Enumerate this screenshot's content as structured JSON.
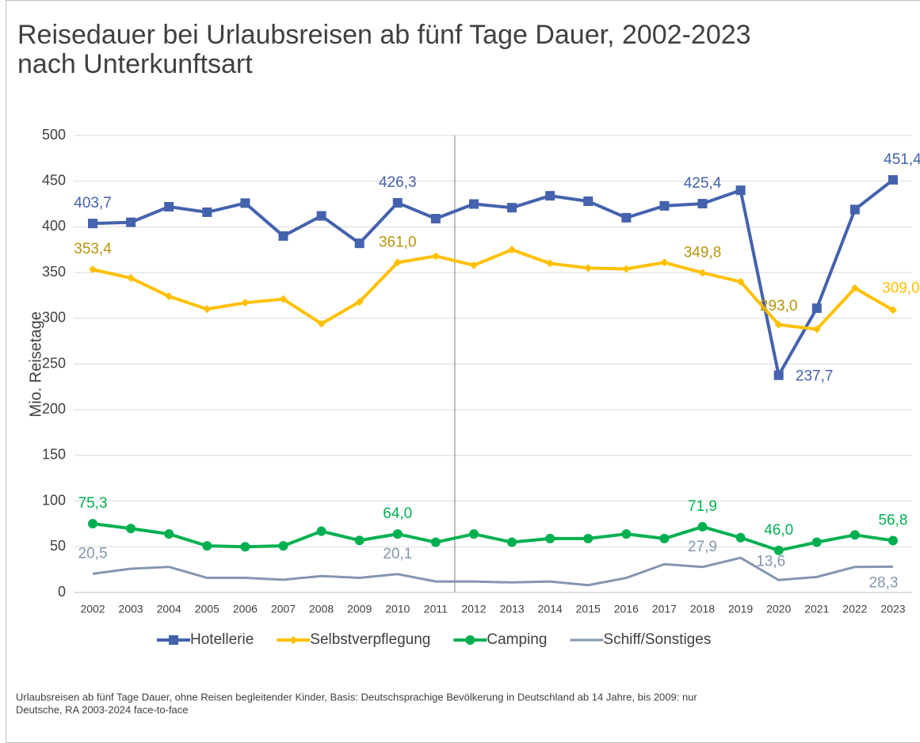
{
  "chart_data": {
    "type": "line",
    "title": "Reisedauer bei Urlaubsreisen ab fünf Tage Dauer, 2002-2023",
    "subtitle": "nach Unterkunftsart",
    "y_label": "Mio. Reisetage",
    "footnote": [
      "Urlaubsreisen ab fünf Tage Dauer, ohne Reisen begleitender Kinder, Basis: Deutschsprachige Bevölkerung in Deutschland ab 14 Jahre, bis 2009: nur",
      "Deutsche, RA 2003-2024 face-to-face"
    ],
    "categories": [
      "2002",
      "2003",
      "2004",
      "2005",
      "2006",
      "2007",
      "2008",
      "2009",
      "2010",
      "2011",
      "2012",
      "2013",
      "2014",
      "2015",
      "2016",
      "2017",
      "2018",
      "2019",
      "2020",
      "2021",
      "2022",
      "2023"
    ],
    "ylim": [
      0,
      500
    ],
    "yticks": [
      0,
      50,
      100,
      150,
      200,
      250,
      300,
      350,
      400,
      450,
      500
    ],
    "grid": true,
    "legend": "bottom",
    "series": [
      {
        "name": "Hotellerie",
        "color": "#4462ad",
        "marker": "square",
        "values": [
          403.7,
          405,
          422,
          416,
          426,
          390,
          412,
          382,
          426.3,
          409,
          425,
          421,
          434,
          428,
          410,
          423,
          425.4,
          440,
          237.7,
          311,
          419,
          451.4
        ],
        "value_labels": [
          "403,7",
          null,
          null,
          null,
          null,
          null,
          null,
          null,
          "426,3",
          null,
          null,
          null,
          null,
          null,
          null,
          null,
          "425,4",
          null,
          "237,7",
          null,
          null,
          "451,4"
        ]
      },
      {
        "name": "Selbstverpflegung",
        "color": "#ffc000",
        "marker": "diamond",
        "values": [
          353.4,
          344,
          324,
          310,
          317,
          321,
          294,
          318,
          361.0,
          368,
          358,
          375,
          360,
          355,
          354,
          361,
          349.8,
          340,
          293.0,
          288,
          333,
          309.0
        ],
        "value_labels": [
          "353,4",
          null,
          null,
          null,
          null,
          null,
          null,
          null,
          "361,0",
          null,
          null,
          null,
          null,
          null,
          null,
          null,
          "349,8",
          null,
          "293,0",
          null,
          null,
          "309,0"
        ]
      },
      {
        "name": "Camping",
        "color": "#00b050",
        "marker": "circle",
        "values": [
          75.3,
          70,
          64,
          51,
          50,
          51,
          67,
          57,
          64.0,
          55,
          64,
          55,
          59,
          59,
          64,
          59,
          71.9,
          60,
          46.0,
          55,
          63,
          56.8
        ],
        "value_labels": [
          "75,3",
          null,
          null,
          null,
          null,
          null,
          null,
          null,
          "64,0",
          null,
          null,
          null,
          null,
          null,
          null,
          null,
          "71,9",
          null,
          "46,0",
          null,
          null,
          "56,8"
        ]
      },
      {
        "name": "Schiff/Sonstiges",
        "color": "#8496b0",
        "marker": "none",
        "values": [
          20.5,
          26,
          28,
          16,
          16,
          14,
          18,
          16,
          20.1,
          12,
          12,
          11,
          12,
          8,
          16,
          31,
          27.9,
          38,
          13.6,
          17,
          28,
          28.3
        ],
        "value_labels": [
          "20,5",
          null,
          null,
          null,
          null,
          null,
          null,
          null,
          "20,1",
          null,
          null,
          null,
          null,
          null,
          null,
          null,
          "27,9",
          null,
          "13,6",
          null,
          null,
          "28,3"
        ]
      }
    ]
  }
}
